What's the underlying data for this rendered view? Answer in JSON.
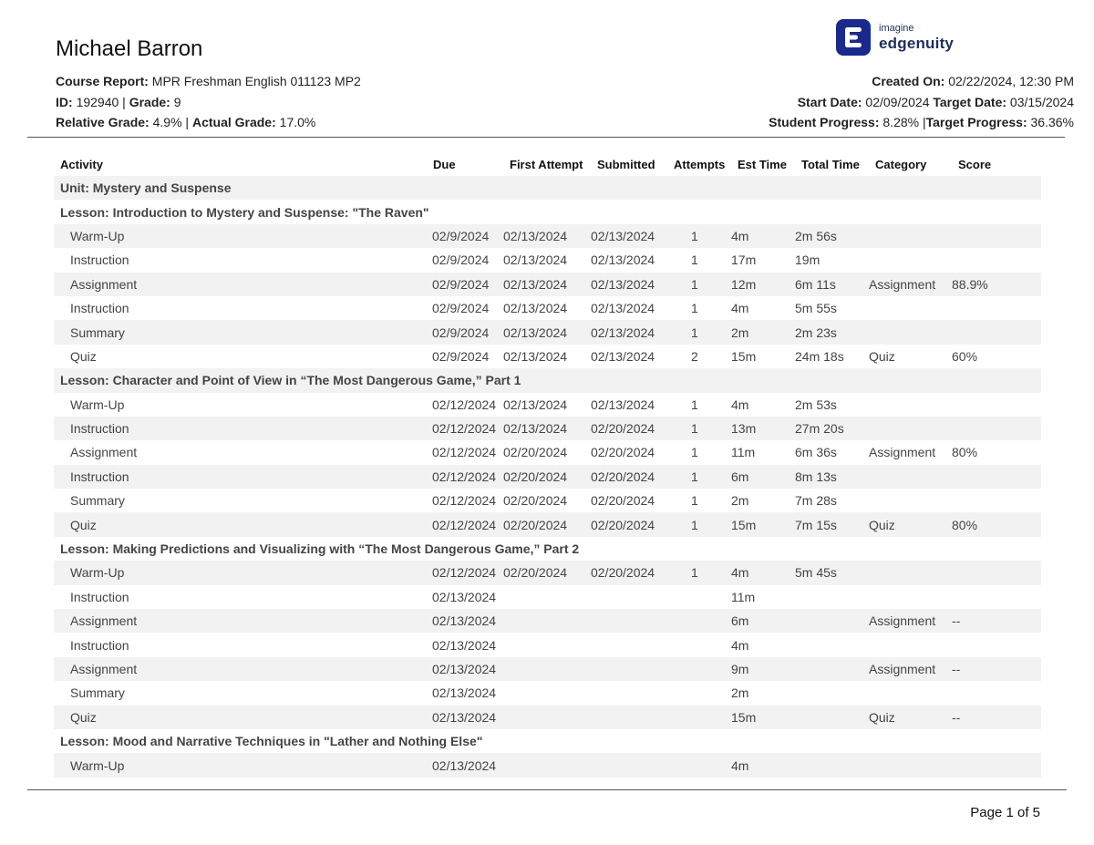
{
  "student": {
    "name": "Michael Barron",
    "course_label": "Course Report:",
    "course": "MPR Freshman English 011123 MP2",
    "id_label": "ID:",
    "id": "192940",
    "grade_label": "Grade:",
    "grade": "9",
    "relative_label": "Relative Grade:",
    "relative_grade": "4.9%",
    "actual_label": "Actual Grade:",
    "actual_grade": "17.0%",
    "sep": "|"
  },
  "report": {
    "created_label": "Created On:",
    "created_on": "02/22/2024, 12:30 PM",
    "start_label": "Start Date:",
    "start_date": "02/09/2024",
    "target_label": "Target Date:",
    "target_date": "03/15/2024",
    "progress_label": "Student Progress:",
    "student_progress": "8.28%",
    "target_progress_label": "Target Progress:",
    "target_progress": "36.36%",
    "sep": "|"
  },
  "logo": {
    "small": "imagine",
    "big": "edgenuity",
    "color": "#1a2a8c",
    "icon": "edgenuity-logo-icon"
  },
  "table": {
    "columns": [
      "Activity",
      "Due",
      "First Attempt",
      "Submitted",
      "Attempts",
      "Est Time",
      "Total Time",
      "Category",
      "Score"
    ],
    "rows": [
      {
        "type": "heading",
        "text": "Unit: Mystery and Suspense"
      },
      {
        "type": "heading",
        "text": "Lesson: Introduction to Mystery and Suspense: \"The Raven\""
      },
      {
        "type": "item",
        "cells": [
          "Warm-Up",
          "02/9/2024",
          "02/13/2024",
          "02/13/2024",
          "1",
          "4m",
          "2m 56s",
          "",
          ""
        ]
      },
      {
        "type": "item",
        "cells": [
          "Instruction",
          "02/9/2024",
          "02/13/2024",
          "02/13/2024",
          "1",
          "17m",
          "19m",
          "",
          ""
        ]
      },
      {
        "type": "item",
        "cells": [
          "Assignment",
          "02/9/2024",
          "02/13/2024",
          "02/13/2024",
          "1",
          "12m",
          "6m 11s",
          "Assignment",
          "88.9%"
        ]
      },
      {
        "type": "item",
        "cells": [
          "Instruction",
          "02/9/2024",
          "02/13/2024",
          "02/13/2024",
          "1",
          "4m",
          "5m 55s",
          "",
          ""
        ]
      },
      {
        "type": "item",
        "cells": [
          "Summary",
          "02/9/2024",
          "02/13/2024",
          "02/13/2024",
          "1",
          "2m",
          "2m 23s",
          "",
          ""
        ]
      },
      {
        "type": "item",
        "cells": [
          "Quiz",
          "02/9/2024",
          "02/13/2024",
          "02/13/2024",
          "2",
          "15m",
          "24m 18s",
          "Quiz",
          "60%"
        ]
      },
      {
        "type": "heading",
        "text": "Lesson: Character and Point of View in “The Most Dangerous Game,” Part 1"
      },
      {
        "type": "item",
        "cells": [
          "Warm-Up",
          "02/12/2024",
          "02/13/2024",
          "02/13/2024",
          "1",
          "4m",
          "2m 53s",
          "",
          ""
        ]
      },
      {
        "type": "item",
        "cells": [
          "Instruction",
          "02/12/2024",
          "02/13/2024",
          "02/20/2024",
          "1",
          "13m",
          "27m 20s",
          "",
          ""
        ]
      },
      {
        "type": "item",
        "cells": [
          "Assignment",
          "02/12/2024",
          "02/20/2024",
          "02/20/2024",
          "1",
          "11m",
          "6m 36s",
          "Assignment",
          "80%"
        ]
      },
      {
        "type": "item",
        "cells": [
          "Instruction",
          "02/12/2024",
          "02/20/2024",
          "02/20/2024",
          "1",
          "6m",
          "8m 13s",
          "",
          ""
        ]
      },
      {
        "type": "item",
        "cells": [
          "Summary",
          "02/12/2024",
          "02/20/2024",
          "02/20/2024",
          "1",
          "2m",
          "7m 28s",
          "",
          ""
        ]
      },
      {
        "type": "item",
        "cells": [
          "Quiz",
          "02/12/2024",
          "02/20/2024",
          "02/20/2024",
          "1",
          "15m",
          "7m 15s",
          "Quiz",
          "80%"
        ]
      },
      {
        "type": "heading",
        "text": "Lesson: Making Predictions and Visualizing with “The Most Dangerous Game,” Part 2"
      },
      {
        "type": "item",
        "cells": [
          "Warm-Up",
          "02/12/2024",
          "02/20/2024",
          "02/20/2024",
          "1",
          "4m",
          "5m 45s",
          "",
          ""
        ]
      },
      {
        "type": "item",
        "cells": [
          "Instruction",
          "02/13/2024",
          "",
          "",
          "",
          "11m",
          "",
          "",
          ""
        ]
      },
      {
        "type": "item",
        "cells": [
          "Assignment",
          "02/13/2024",
          "",
          "",
          "",
          "6m",
          "",
          "Assignment",
          "--"
        ]
      },
      {
        "type": "item",
        "cells": [
          "Instruction",
          "02/13/2024",
          "",
          "",
          "",
          "4m",
          "",
          "",
          ""
        ]
      },
      {
        "type": "item",
        "cells": [
          "Assignment",
          "02/13/2024",
          "",
          "",
          "",
          "9m",
          "",
          "Assignment",
          "--"
        ]
      },
      {
        "type": "item",
        "cells": [
          "Summary",
          "02/13/2024",
          "",
          "",
          "",
          "2m",
          "",
          "",
          ""
        ]
      },
      {
        "type": "item",
        "cells": [
          "Quiz",
          "02/13/2024",
          "",
          "",
          "",
          "15m",
          "",
          "Quiz",
          "--"
        ]
      },
      {
        "type": "heading",
        "text": "Lesson: Mood and Narrative Techniques in \"Lather and Nothing Else\""
      },
      {
        "type": "item",
        "cells": [
          "Warm-Up",
          "02/13/2024",
          "",
          "",
          "",
          "4m",
          "",
          "",
          ""
        ]
      }
    ]
  },
  "footer": {
    "page": "Page 1 of 5"
  }
}
